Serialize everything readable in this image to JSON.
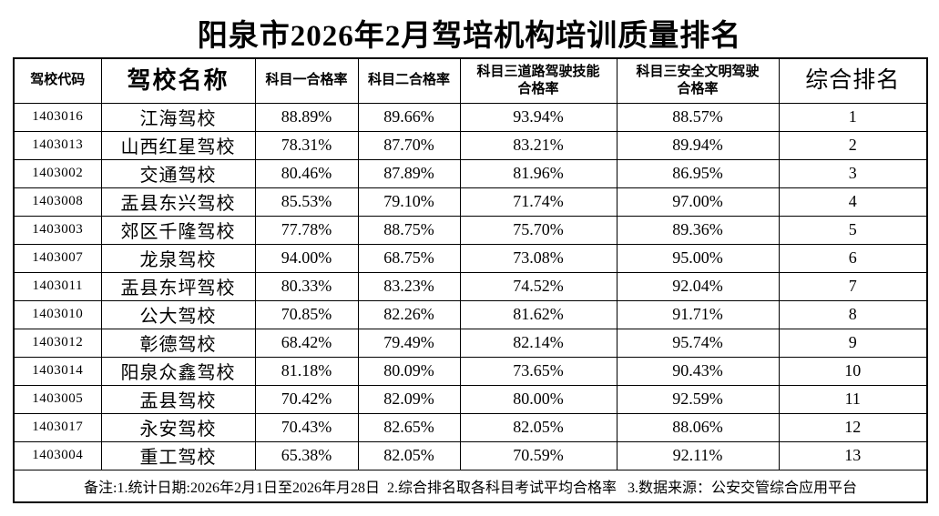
{
  "page": {
    "title": "阳泉市2026年2月驾培机构培训质量排名"
  },
  "colors": {
    "text": "#000000",
    "border": "#000000",
    "background": "#ffffff"
  },
  "table": {
    "columns": [
      {
        "id": "code",
        "label": "驾校代码"
      },
      {
        "id": "name",
        "label": "驾校名称"
      },
      {
        "id": "subject1",
        "label": "科目一合格率"
      },
      {
        "id": "subject2",
        "label": "科目二合格率"
      },
      {
        "id": "subject3_road",
        "label": "科目三道路驾驶技能",
        "label2": "合格率"
      },
      {
        "id": "subject3_safe",
        "label": "科目三安全文明驾驶",
        "label2": "合格率"
      },
      {
        "id": "rank",
        "label": "综合排名"
      }
    ],
    "rows": [
      {
        "code": "1403016",
        "name": "江海驾校",
        "s1": "88.89%",
        "s2": "89.66%",
        "s3_road": "93.94%",
        "s3_safe": "88.57%",
        "rank": "1"
      },
      {
        "code": "1403013",
        "name": "山西红星驾校",
        "s1": "78.31%",
        "s2": "87.70%",
        "s3_road": "83.21%",
        "s3_safe": "89.94%",
        "rank": "2"
      },
      {
        "code": "1403002",
        "name": "交通驾校",
        "s1": "80.46%",
        "s2": "87.89%",
        "s3_road": "81.96%",
        "s3_safe": "86.95%",
        "rank": "3"
      },
      {
        "code": "1403008",
        "name": "盂县东兴驾校",
        "s1": "85.53%",
        "s2": "79.10%",
        "s3_road": "71.74%",
        "s3_safe": "97.00%",
        "rank": "4"
      },
      {
        "code": "1403003",
        "name": "郊区千隆驾校",
        "s1": "77.78%",
        "s2": "88.75%",
        "s3_road": "75.70%",
        "s3_safe": "89.36%",
        "rank": "5"
      },
      {
        "code": "1403007",
        "name": "龙泉驾校",
        "s1": "94.00%",
        "s2": "68.75%",
        "s3_road": "73.08%",
        "s3_safe": "95.00%",
        "rank": "6"
      },
      {
        "code": "1403011",
        "name": "盂县东坪驾校",
        "s1": "80.33%",
        "s2": "83.23%",
        "s3_road": "74.52%",
        "s3_safe": "92.04%",
        "rank": "7"
      },
      {
        "code": "1403010",
        "name": "公大驾校",
        "s1": "70.85%",
        "s2": "82.26%",
        "s3_road": "81.62%",
        "s3_safe": "91.71%",
        "rank": "8"
      },
      {
        "code": "1403012",
        "name": "彰德驾校",
        "s1": "68.42%",
        "s2": "79.49%",
        "s3_road": "82.14%",
        "s3_safe": "95.74%",
        "rank": "9"
      },
      {
        "code": "1403014",
        "name": "阳泉众鑫驾校",
        "s1": "81.18%",
        "s2": "80.09%",
        "s3_road": "73.65%",
        "s3_safe": "90.43%",
        "rank": "10"
      },
      {
        "code": "1403005",
        "name": "盂县驾校",
        "s1": "70.42%",
        "s2": "82.09%",
        "s3_road": "80.00%",
        "s3_safe": "92.59%",
        "rank": "11"
      },
      {
        "code": "1403017",
        "name": "永安驾校",
        "s1": "70.43%",
        "s2": "82.65%",
        "s3_road": "82.05%",
        "s3_safe": "88.06%",
        "rank": "12"
      },
      {
        "code": "1403004",
        "name": "重工驾校",
        "s1": "65.38%",
        "s2": "82.05%",
        "s3_road": "70.59%",
        "s3_safe": "92.11%",
        "rank": "13"
      }
    ],
    "footer_note": "备注:1.统计日期:2026年2月1日至2026年月28日  2.综合排名取各科目考试平均合格率   3.数据来源：公安交管综合应用平台"
  }
}
